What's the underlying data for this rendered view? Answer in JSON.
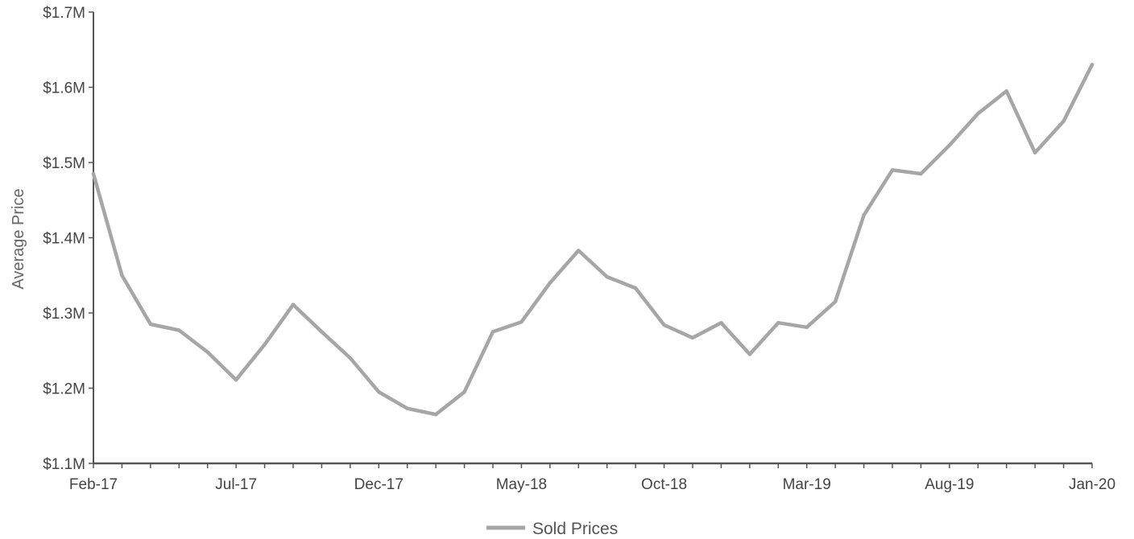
{
  "chart_data": {
    "type": "line",
    "title": "",
    "xlabel": "",
    "ylabel": "Average Price",
    "ylim": [
      1100000,
      1700000
    ],
    "y_ticks": [
      1100000,
      1200000,
      1300000,
      1400000,
      1500000,
      1600000,
      1700000
    ],
    "y_tick_labels": [
      "$1.1M",
      "$1.2M",
      "$1.3M",
      "$1.4M",
      "$1.5M",
      "$1.6M",
      "$1.7M"
    ],
    "x": [
      "2017-02",
      "2017-03",
      "2017-04",
      "2017-05",
      "2017-06",
      "2017-07",
      "2017-08",
      "2017-09",
      "2017-10",
      "2017-11",
      "2017-12",
      "2018-01",
      "2018-02",
      "2018-03",
      "2018-04",
      "2018-05",
      "2018-06",
      "2018-07",
      "2018-08",
      "2018-09",
      "2018-10",
      "2018-11",
      "2018-12",
      "2019-01",
      "2019-02",
      "2019-03",
      "2019-04",
      "2019-05",
      "2019-06",
      "2019-07",
      "2019-08",
      "2019-09",
      "2019-10",
      "2019-11",
      "2019-12",
      "2020-01"
    ],
    "x_tick_labels": [
      {
        "label": "Feb-17",
        "at": "2017-02"
      },
      {
        "label": "Jul-17",
        "at": "2017-07"
      },
      {
        "label": "Dec-17",
        "at": "2017-12"
      },
      {
        "label": "May-18",
        "at": "2018-05"
      },
      {
        "label": "Oct-18",
        "at": "2018-10"
      },
      {
        "label": "Mar-19",
        "at": "2019-03"
      },
      {
        "label": "Aug-19",
        "at": "2019-08"
      },
      {
        "label": "Jan-20",
        "at": "2020-01"
      }
    ],
    "series": [
      {
        "name": "Sold Prices",
        "color": "#a6a6a6",
        "values": [
          1485000,
          1350000,
          1285000,
          1277000,
          1248000,
          1211000,
          1258000,
          1311000,
          1275000,
          1240000,
          1195000,
          1173000,
          1165000,
          1195000,
          1275000,
          1288000,
          1340000,
          1383000,
          1348000,
          1333000,
          1284000,
          1267000,
          1287000,
          1245000,
          1287000,
          1281000,
          1315000,
          1430000,
          1490000,
          1485000,
          1523000,
          1565000,
          1595000,
          1513000,
          1555000,
          1630000
        ]
      }
    ],
    "grid": false,
    "legend": "bottom-center"
  },
  "colors": {
    "axis": "#555555",
    "line": "#a6a6a6"
  }
}
